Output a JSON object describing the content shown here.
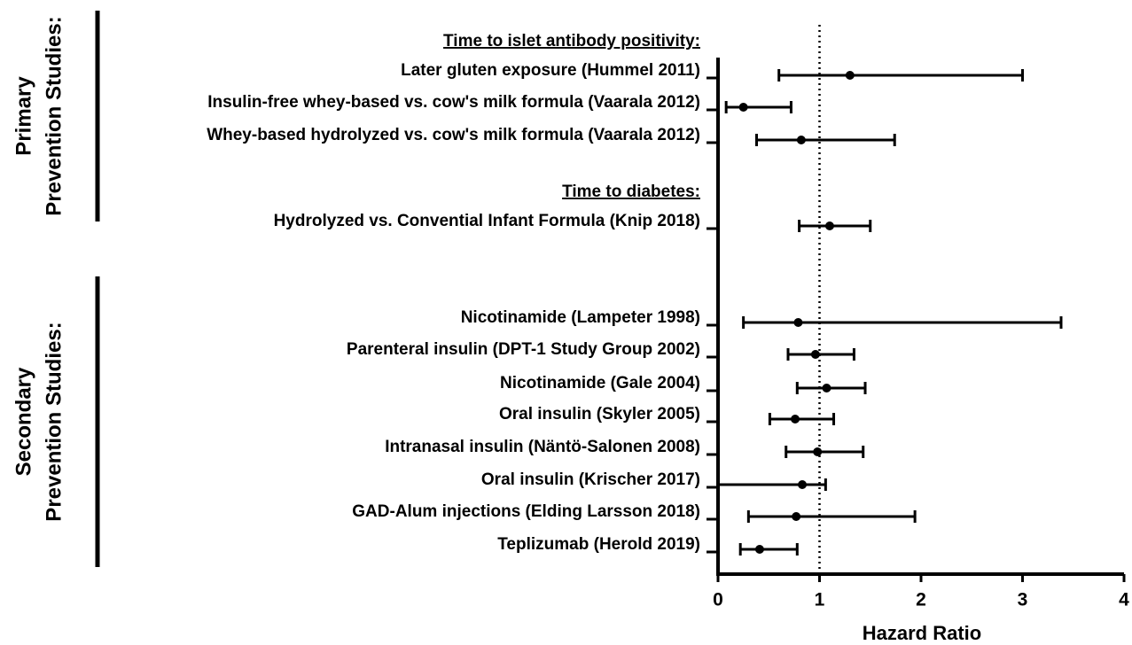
{
  "chart_data": {
    "type": "forest",
    "x_label": "Hazard Ratio",
    "xlim": [
      0,
      4
    ],
    "xticks": [
      0,
      1,
      2,
      3,
      4
    ],
    "reference_line": 1,
    "color": "#000000",
    "sections": [
      [
        "Primary",
        "Prevention Studies:"
      ],
      [
        "Secondary",
        "Prevention Studies:"
      ]
    ],
    "subheaders": [
      "Time to islet antibody positivity:",
      "Time to diabetes:"
    ],
    "categories": [
      "Later gluten exposure (Hummel 2011)",
      "Insulin-free whey-based vs. cow's milk formula (Vaarala 2012)",
      "Whey-based hydrolyzed vs. cow's milk formula (Vaarala 2012)",
      "Hydrolyzed vs. Convential Infant Formula (Knip 2018)",
      "Nicotinamide (Lampeter 1998)",
      "Parenteral insulin (DPT-1 Study Group 2002)",
      "Nicotinamide (Gale 2004)",
      "Oral insulin (Skyler 2005)",
      "Intranasal insulin (Näntö-Salonen 2008)",
      "Oral insulin (Krischer 2017)",
      "GAD-Alum injections (Elding Larsson 2018)",
      "Teplizumab (Herold 2019)"
    ],
    "values": [
      1.3,
      0.25,
      0.82,
      1.1,
      0.79,
      0.96,
      1.07,
      0.76,
      0.98,
      0.83,
      0.77,
      0.41
    ],
    "lower": [
      0.6,
      0.08,
      0.38,
      0.8,
      0.25,
      0.69,
      0.78,
      0.51,
      0.67,
      0,
      0.3,
      0.22
    ],
    "upper": [
      3.0,
      0.72,
      1.74,
      1.5,
      3.38,
      1.34,
      1.45,
      1.14,
      1.43,
      1.06,
      1.94,
      0.78
    ]
  }
}
